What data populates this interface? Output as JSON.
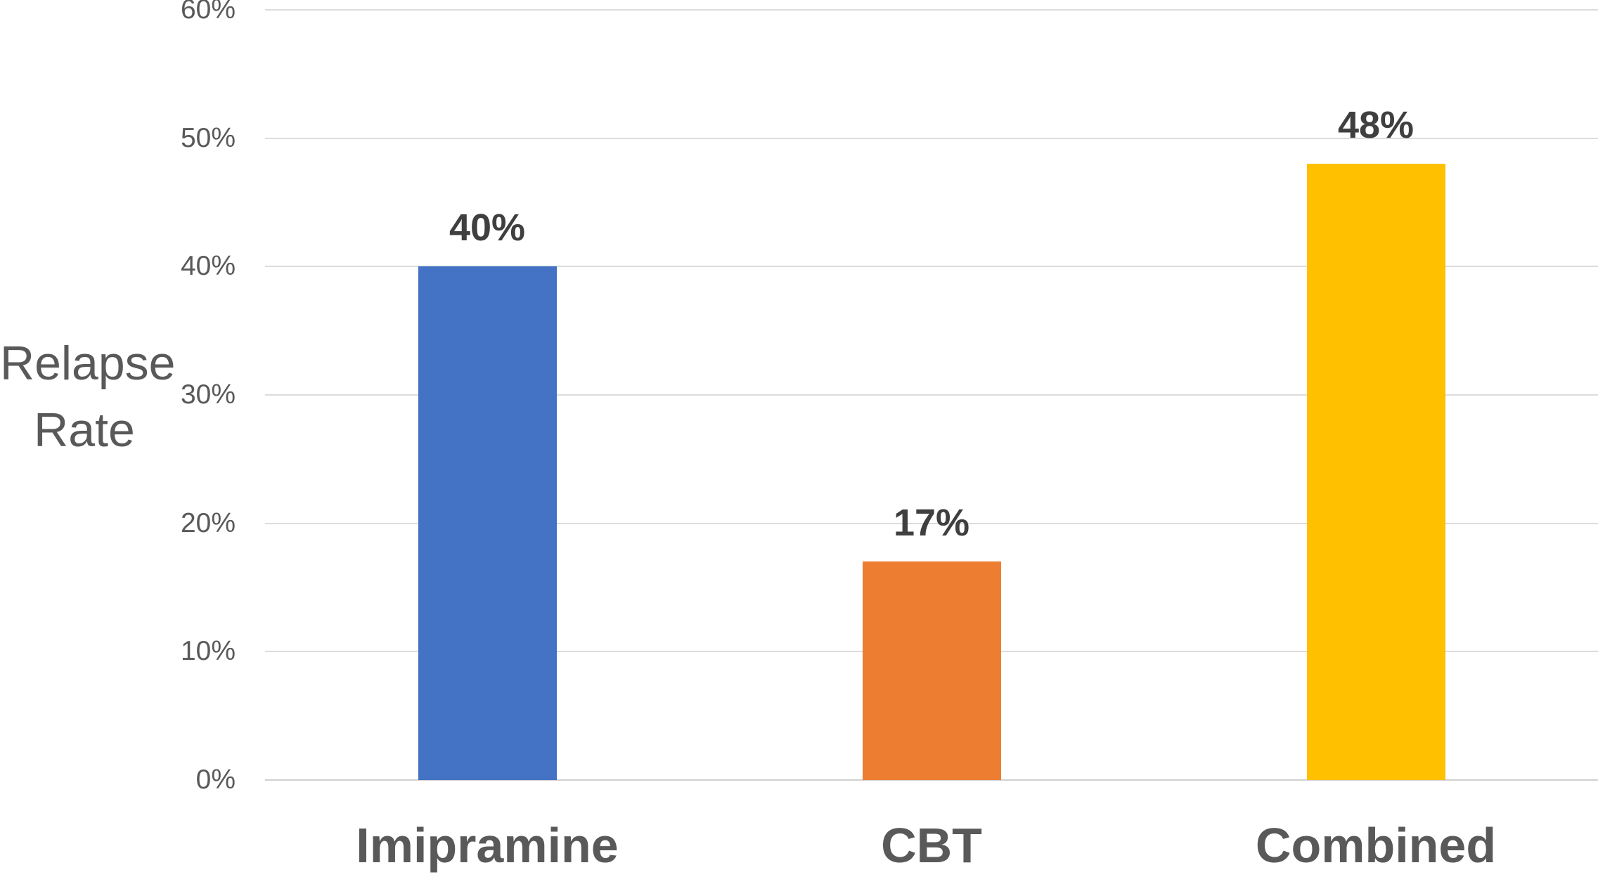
{
  "chart_data": {
    "type": "bar",
    "title": "",
    "xlabel": "",
    "ylabel": "Relapse Rate",
    "ylabel_lines": [
      "Relapse",
      "Rate"
    ],
    "categories": [
      "Imipramine",
      "CBT",
      "Combined"
    ],
    "values": [
      40,
      17,
      48
    ],
    "value_labels": [
      "40%",
      "17%",
      "48%"
    ],
    "bar_colors": [
      "#4472C4",
      "#ED7D31",
      "#FFC000"
    ],
    "ylim": [
      0,
      60
    ],
    "ytick_interval": 10,
    "ytick_labels": [
      "0%",
      "10%",
      "20%",
      "30%",
      "40%",
      "50%",
      "60%"
    ],
    "grid": true,
    "legend_position": "none",
    "gridline_color": "#DCDCDC",
    "axis_text_color": "#595959",
    "data_label_color": "#3F3F3F",
    "background_color": "#FFFFFF"
  }
}
